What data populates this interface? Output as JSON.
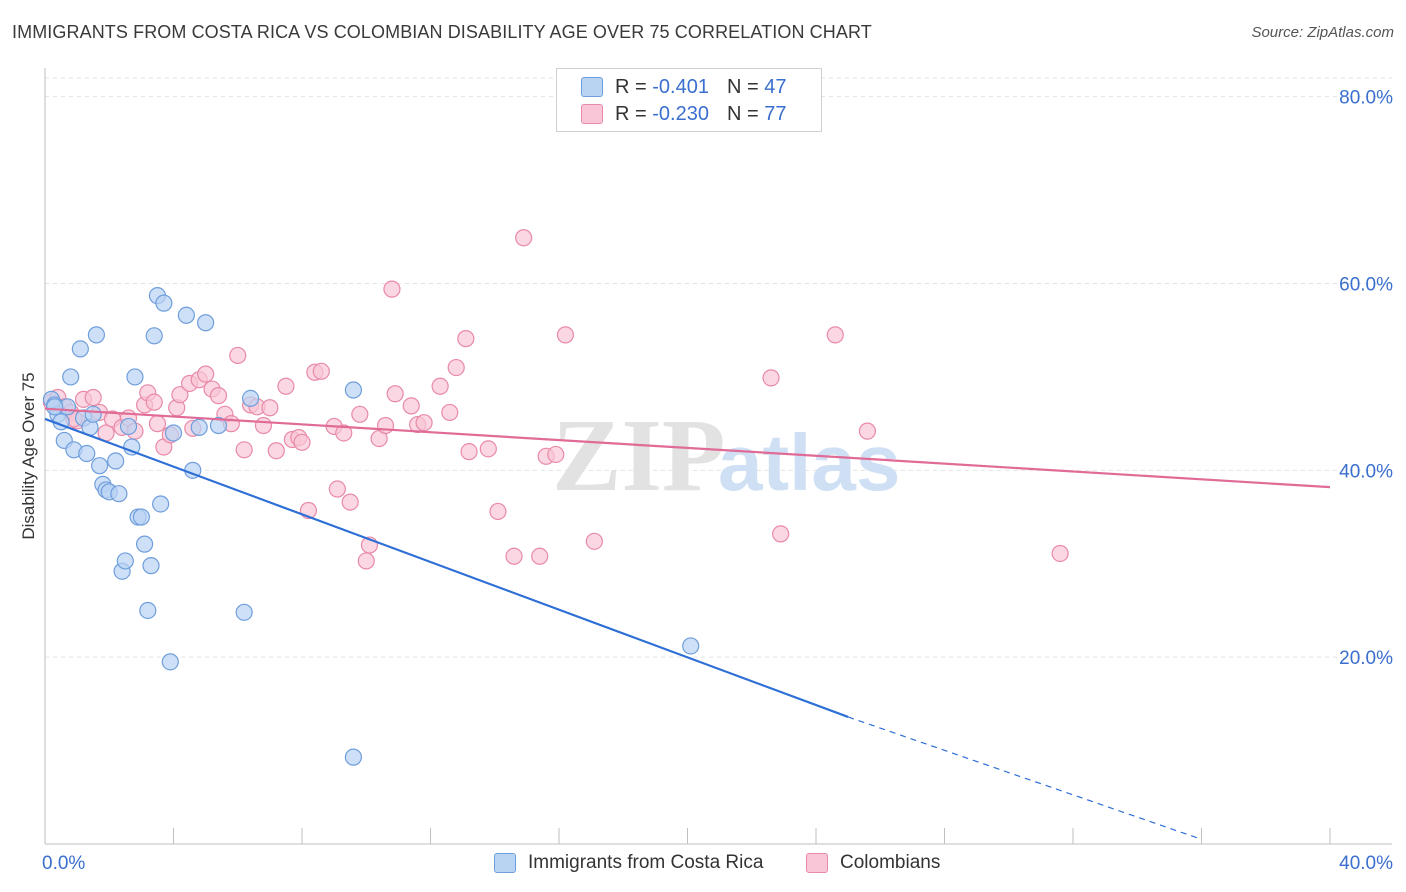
{
  "header": {
    "title": "IMMIGRANTS FROM COSTA RICA VS COLOMBIAN DISABILITY AGE OVER 75 CORRELATION CHART",
    "source": "Source: ZipAtlas.com"
  },
  "legend": {
    "rows": [
      {
        "r_label": "R = ",
        "r_value": "-0.401",
        "n_label": "N = ",
        "n_value": "47"
      },
      {
        "r_label": "R = ",
        "r_value": "-0.230",
        "n_label": "N = ",
        "n_value": "77"
      }
    ]
  },
  "bottom_legend": {
    "items": [
      "Immigrants from Costa Rica",
      "Colombians"
    ]
  },
  "watermark": {
    "zip": "ZIP",
    "atlas": "atlas"
  },
  "colors": {
    "blue_fill": "#b9d3f3",
    "blue_stroke": "#6f9edc",
    "blue_line": "#2e6fd6",
    "pink_fill": "#f8c6d6",
    "pink_stroke": "#e98aa8",
    "pink_line": "#e06b96",
    "axis_text": "#3a6fcf",
    "grid": "#e3e3e3"
  },
  "chart_data": {
    "type": "scatter",
    "title": "IMMIGRANTS FROM COSTA RICA VS COLOMBIAN DISABILITY AGE OVER 75 CORRELATION CHART",
    "xlabel": "",
    "ylabel": "Disability Age Over 75",
    "xlim": [
      0,
      40
    ],
    "ylim": [
      0,
      82
    ],
    "x_tick_labels": [
      "0.0%",
      "40.0%"
    ],
    "y_ticks": [
      20,
      40,
      60,
      80
    ],
    "y_tick_labels": [
      "20.0%",
      "40.0%",
      "60.0%",
      "80.0%"
    ],
    "series": [
      {
        "name": "Immigrants from Costa Rica",
        "R": -0.401,
        "N": 47,
        "points": [
          [
            0.2,
            47.6
          ],
          [
            0.3,
            47.0
          ],
          [
            0.4,
            46.0
          ],
          [
            0.5,
            45.2
          ],
          [
            0.6,
            43.2
          ],
          [
            0.7,
            46.8
          ],
          [
            0.8,
            50.0
          ],
          [
            0.9,
            42.2
          ],
          [
            1.1,
            53.0
          ],
          [
            1.2,
            45.6
          ],
          [
            1.3,
            41.8
          ],
          [
            1.4,
            44.6
          ],
          [
            1.5,
            46.0
          ],
          [
            1.6,
            54.5
          ],
          [
            1.7,
            40.5
          ],
          [
            1.8,
            38.5
          ],
          [
            1.9,
            37.9
          ],
          [
            2.0,
            37.7
          ],
          [
            2.2,
            41.0
          ],
          [
            2.3,
            37.5
          ],
          [
            2.4,
            29.2
          ],
          [
            2.5,
            30.3
          ],
          [
            2.6,
            44.7
          ],
          [
            2.7,
            42.5
          ],
          [
            2.8,
            50.0
          ],
          [
            2.9,
            35.0
          ],
          [
            3.0,
            35.0
          ],
          [
            3.1,
            32.1
          ],
          [
            3.2,
            25.0
          ],
          [
            3.3,
            29.8
          ],
          [
            3.4,
            54.4
          ],
          [
            3.5,
            58.7
          ],
          [
            3.6,
            36.4
          ],
          [
            3.7,
            57.9
          ],
          [
            3.9,
            19.5
          ],
          [
            4.0,
            44.0
          ],
          [
            4.4,
            56.6
          ],
          [
            4.6,
            40.0
          ],
          [
            4.8,
            44.6
          ],
          [
            5.0,
            55.8
          ],
          [
            5.4,
            44.8
          ],
          [
            6.2,
            24.8
          ],
          [
            6.4,
            47.7
          ],
          [
            9.6,
            48.6
          ],
          [
            9.6,
            9.3
          ],
          [
            20.1,
            21.2
          ],
          [
            0.3,
            46.8
          ]
        ],
        "trend": {
          "x0": 0,
          "y0": 45.5,
          "x1": 25,
          "y1": 13.6,
          "dash_x1": 36,
          "dash_y1": 0.5
        }
      },
      {
        "name": "Colombians",
        "R": -0.23,
        "N": 77,
        "points": [
          [
            0.2,
            47.3
          ],
          [
            0.4,
            47.8
          ],
          [
            0.6,
            46.8
          ],
          [
            0.8,
            46.2
          ],
          [
            1.0,
            45.3
          ],
          [
            1.2,
            47.6
          ],
          [
            1.5,
            47.8
          ],
          [
            1.7,
            46.2
          ],
          [
            1.9,
            44.0
          ],
          [
            2.1,
            45.5
          ],
          [
            2.4,
            44.6
          ],
          [
            2.6,
            45.6
          ],
          [
            2.8,
            44.2
          ],
          [
            3.1,
            47.0
          ],
          [
            3.2,
            48.3
          ],
          [
            3.4,
            47.3
          ],
          [
            3.5,
            45.0
          ],
          [
            3.7,
            42.5
          ],
          [
            3.9,
            43.8
          ],
          [
            4.1,
            46.7
          ],
          [
            4.2,
            48.1
          ],
          [
            4.5,
            49.3
          ],
          [
            4.6,
            44.5
          ],
          [
            4.8,
            49.7
          ],
          [
            5.0,
            50.3
          ],
          [
            5.2,
            48.7
          ],
          [
            5.4,
            48.0
          ],
          [
            5.6,
            46.0
          ],
          [
            5.8,
            45.0
          ],
          [
            6.0,
            52.3
          ],
          [
            6.2,
            42.2
          ],
          [
            6.4,
            47.0
          ],
          [
            6.6,
            46.8
          ],
          [
            6.8,
            44.8
          ],
          [
            7.0,
            46.7
          ],
          [
            7.2,
            42.1
          ],
          [
            7.5,
            49.0
          ],
          [
            7.7,
            43.3
          ],
          [
            7.9,
            43.5
          ],
          [
            8.0,
            43.0
          ],
          [
            8.2,
            35.7
          ],
          [
            8.4,
            50.5
          ],
          [
            8.6,
            50.6
          ],
          [
            9.0,
            44.7
          ],
          [
            9.1,
            38.0
          ],
          [
            9.3,
            44.0
          ],
          [
            9.5,
            36.6
          ],
          [
            9.8,
            46.0
          ],
          [
            10.0,
            30.3
          ],
          [
            10.1,
            32.0
          ],
          [
            10.4,
            43.4
          ],
          [
            10.6,
            44.8
          ],
          [
            10.8,
            59.4
          ],
          [
            10.9,
            48.2
          ],
          [
            11.4,
            46.9
          ],
          [
            11.6,
            44.9
          ],
          [
            11.8,
            45.1
          ],
          [
            12.3,
            49.0
          ],
          [
            12.6,
            46.2
          ],
          [
            12.8,
            51.0
          ],
          [
            13.1,
            54.1
          ],
          [
            13.2,
            42.0
          ],
          [
            13.8,
            42.3
          ],
          [
            14.1,
            35.6
          ],
          [
            14.6,
            30.8
          ],
          [
            14.9,
            64.9
          ],
          [
            15.4,
            30.8
          ],
          [
            15.6,
            41.5
          ],
          [
            15.9,
            41.7
          ],
          [
            16.2,
            54.5
          ],
          [
            17.1,
            32.4
          ],
          [
            22.6,
            49.9
          ],
          [
            22.9,
            33.2
          ],
          [
            24.6,
            54.5
          ],
          [
            25.6,
            44.2
          ],
          [
            31.6,
            31.1
          ],
          [
            0.9,
            45.5
          ]
        ],
        "trend": {
          "x0": 0,
          "y0": 46.6,
          "x1": 40,
          "y1": 38.2
        }
      }
    ]
  }
}
